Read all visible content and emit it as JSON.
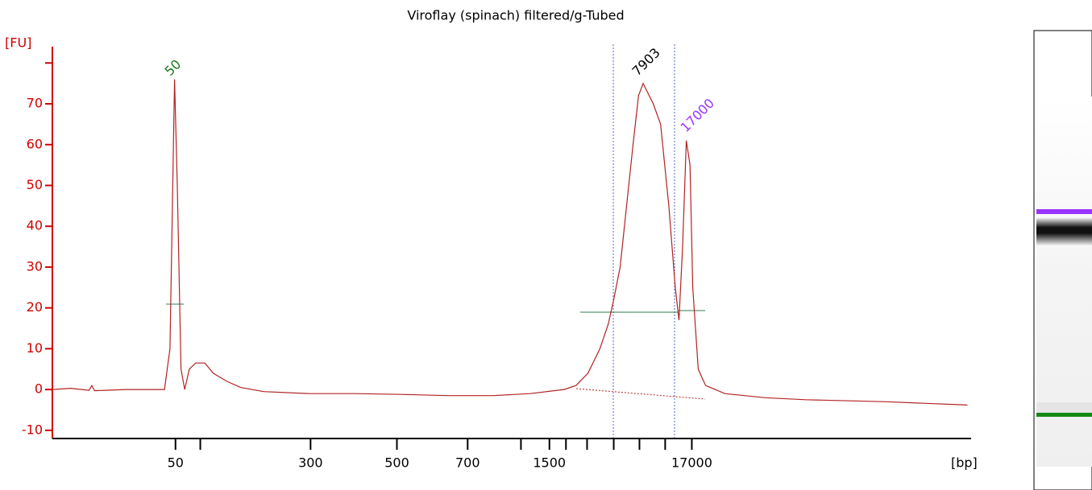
{
  "chart_data": {
    "type": "line",
    "title": "Viroflay (spinach) filtered/g-Tubed",
    "y_label": "[FU]",
    "x_label": "[bp]",
    "color": "#b22222",
    "axis_color": "#d00000",
    "xlim": [
      0,
      100
    ],
    "ylim": [
      -12,
      84
    ],
    "yticks": [
      -10,
      0,
      10,
      20,
      30,
      40,
      50,
      60,
      70,
      {
        "value": 80,
        "label": null
      }
    ],
    "xticks": [
      {
        "value": 13.4,
        "label": "50"
      },
      {
        "value": 16.1,
        "label": null
      },
      {
        "value": 28.1,
        "label": "300"
      },
      {
        "value": 37.5,
        "label": "500"
      },
      {
        "value": 45.2,
        "label": "700"
      },
      {
        "value": 51.0,
        "label": null
      },
      {
        "value": 54.1,
        "label": "1500"
      },
      {
        "value": 55.9,
        "label": null
      },
      {
        "value": 58.2,
        "label": null
      },
      {
        "value": 61.1,
        "label": null
      },
      {
        "value": 63.9,
        "label": null
      },
      {
        "value": 66.7,
        "label": null
      },
      {
        "value": 69.6,
        "label": "17000"
      }
    ],
    "x": [
      0,
      2,
      4,
      4.3,
      4.6,
      8,
      12.2,
      12.8,
      13.3,
      13.6,
      14.0,
      14.4,
      14.9,
      15.6,
      16.6,
      17.5,
      19,
      20.5,
      23,
      28,
      33,
      38,
      43,
      48,
      52,
      55.7,
      57,
      58.3,
      59.6,
      60.5,
      61.1,
      61.8,
      62.5,
      63.2,
      63.8,
      64.3,
      65.4,
      66.2,
      67.1,
      67.8,
      68.2,
      68.6,
      69.0,
      69.4,
      69.7,
      70.3,
      71.1,
      73.2,
      77.6,
      82,
      90.8,
      99.6
    ],
    "values": [
      0,
      0.3,
      -0.2,
      1.0,
      -0.3,
      0,
      0,
      10,
      76,
      50,
      5,
      0,
      5,
      6.5,
      6.5,
      4,
      2,
      0.5,
      -0.5,
      -1,
      -1,
      -1.2,
      -1.5,
      -1.5,
      -1,
      0,
      1,
      4,
      10,
      16,
      22,
      30,
      45,
      60,
      72,
      75,
      70,
      65,
      45,
      25,
      17,
      35,
      61,
      55,
      25,
      5,
      1,
      -1,
      -2,
      -2.5,
      -3,
      -3.8
    ],
    "annotations": [
      {
        "text": "50",
        "color": "#1a7a1a"
      },
      {
        "text": "7903",
        "color": "#000000"
      },
      {
        "text": "17000",
        "color": "#9933ff"
      }
    ]
  }
}
